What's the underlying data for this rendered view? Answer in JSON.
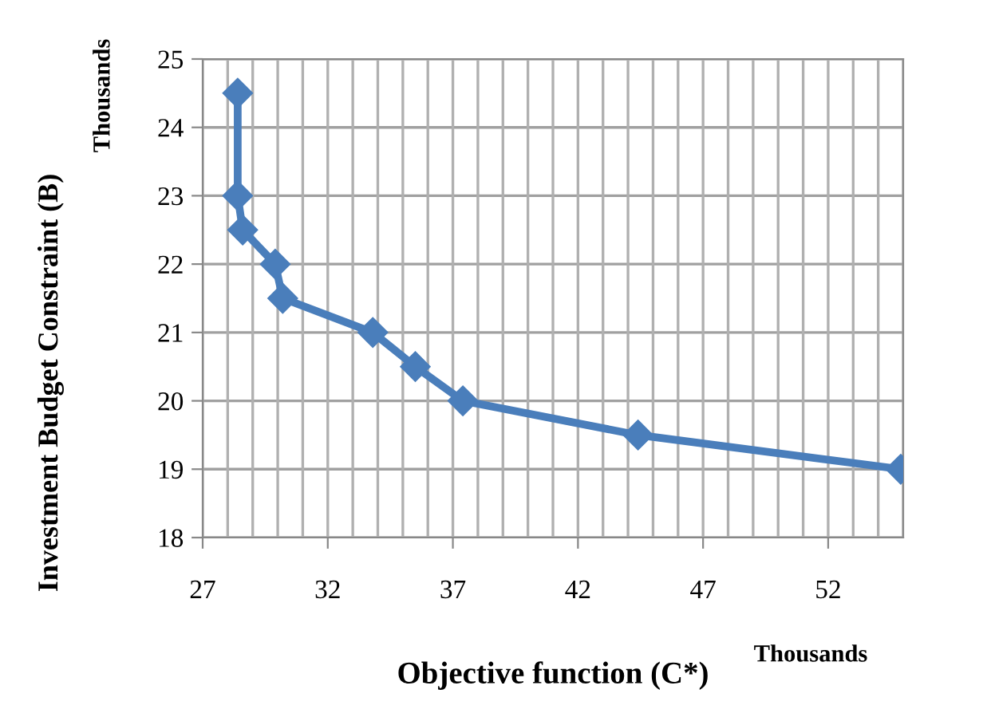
{
  "chart_data": {
    "type": "line",
    "xlabel": "Objective function (C*)",
    "ylabel": "Investment Budget Constraint (B)",
    "annotations": [
      "Thousands",
      "Thousands"
    ],
    "x": [
      28.4,
      28.4,
      28.6,
      29.9,
      30.2,
      33.8,
      35.5,
      37.4,
      44.4,
      54.9
    ],
    "series": [
      {
        "color": "#4a7ebb",
        "values": [
          24.5,
          23.0,
          22.5,
          22.0,
          21.5,
          21.0,
          20.5,
          20.0,
          19.5,
          19.0
        ]
      }
    ],
    "xlim": [
      27,
      55
    ],
    "xticks": [
      27,
      32,
      37,
      42,
      47,
      52
    ],
    "ylim": [
      18,
      25
    ],
    "yticks": [
      18,
      19,
      20,
      21,
      22,
      23,
      24,
      25
    ],
    "grid": true,
    "marker": "diamond",
    "line_style": "solid"
  }
}
